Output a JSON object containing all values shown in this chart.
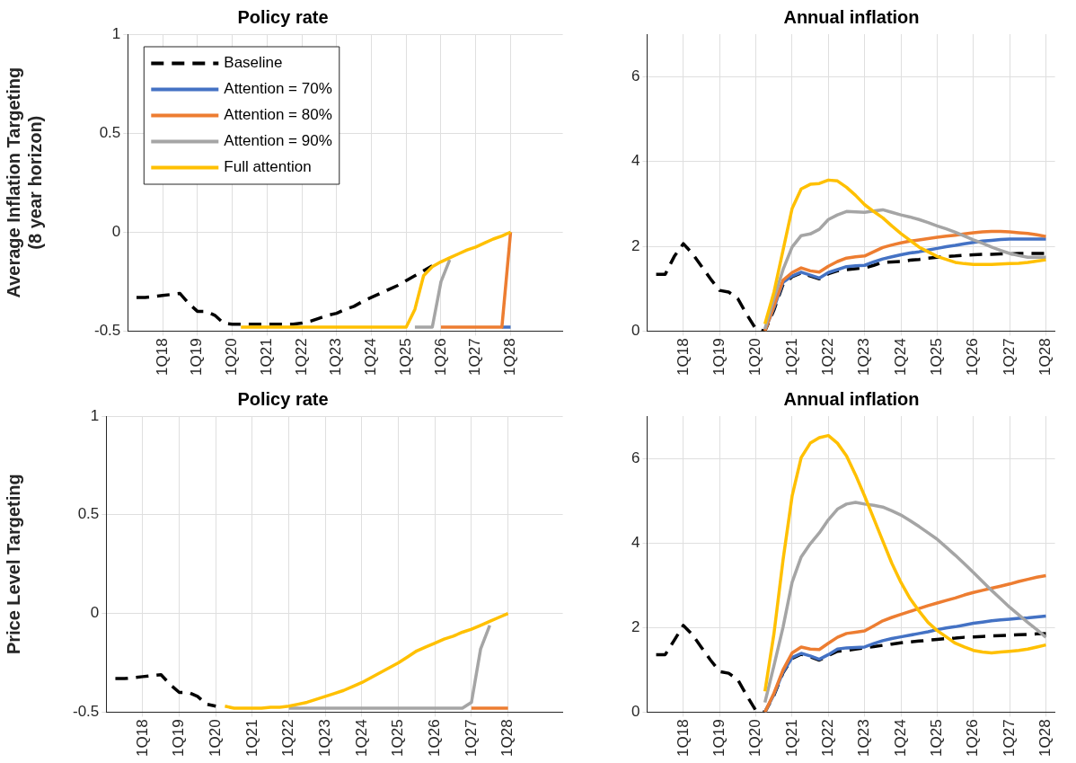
{
  "chart_data": [
    {
      "type": "line",
      "title": "Policy rate",
      "ylabel": "Average Inflation Targeting\n(8 year horizon)",
      "ylim": [
        -0.5,
        1
      ],
      "yticks": [
        -0.5,
        0,
        0.5,
        1
      ],
      "categories": [
        null,
        null,
        null,
        null,
        "1Q18",
        null,
        null,
        null,
        "1Q19",
        null,
        null,
        null,
        "1Q20",
        null,
        null,
        null,
        "1Q21",
        null,
        null,
        null,
        "1Q22",
        null,
        null,
        null,
        "1Q23",
        null,
        null,
        null,
        "1Q24",
        null,
        null,
        null,
        "1Q25",
        null,
        null,
        null,
        "1Q26",
        null,
        null,
        null,
        "1Q27",
        null,
        null,
        null,
        "1Q28",
        null,
        null,
        null,
        null,
        null,
        null
      ],
      "grid": true,
      "legend": "top left",
      "marker": "none",
      "series": [
        {
          "name": "Baseline",
          "color": "#000000",
          "line_style": "dashed",
          "values": [
            null,
            -0.33,
            -0.33,
            -0.325,
            -0.32,
            -0.315,
            -0.31,
            -0.36,
            -0.4,
            -0.4,
            -0.42,
            -0.46,
            -0.465,
            -0.465,
            -0.465,
            -0.465,
            -0.465,
            -0.465,
            -0.465,
            -0.465,
            -0.46,
            -0.45,
            -0.435,
            -0.42,
            -0.41,
            -0.39,
            -0.375,
            -0.35,
            -0.33,
            -0.31,
            -0.29,
            -0.27,
            -0.245,
            -0.22,
            -0.195,
            -0.17,
            null,
            null,
            null,
            null,
            null,
            null,
            null,
            null,
            null,
            null,
            null,
            null,
            null,
            null,
            null
          ]
        },
        {
          "name": "Attention = 70%",
          "color": "#4472c4",
          "line_style": "solid",
          "values": [
            null,
            null,
            null,
            null,
            null,
            null,
            null,
            null,
            null,
            null,
            null,
            null,
            null,
            null,
            null,
            null,
            null,
            null,
            null,
            null,
            null,
            null,
            null,
            null,
            null,
            null,
            null,
            null,
            null,
            null,
            null,
            null,
            null,
            null,
            null,
            null,
            null,
            null,
            null,
            null,
            null,
            null,
            null,
            -0.48,
            -0.48,
            null,
            null,
            null,
            null,
            null,
            null
          ]
        },
        {
          "name": "Attention = 80%",
          "color": "#ed7d31",
          "line_style": "solid",
          "values": [
            null,
            null,
            null,
            null,
            null,
            null,
            null,
            null,
            null,
            null,
            null,
            null,
            null,
            null,
            null,
            null,
            null,
            null,
            null,
            null,
            null,
            null,
            null,
            null,
            null,
            null,
            null,
            null,
            null,
            null,
            null,
            null,
            null,
            null,
            null,
            null,
            -0.48,
            -0.48,
            -0.48,
            -0.48,
            -0.48,
            -0.48,
            -0.48,
            -0.48,
            0,
            null,
            null,
            null,
            null,
            null,
            null
          ]
        },
        {
          "name": "Attention = 90%",
          "color": "#a5a5a5",
          "line_style": "solid",
          "values": [
            null,
            null,
            null,
            null,
            null,
            null,
            null,
            null,
            null,
            null,
            null,
            null,
            null,
            null,
            null,
            null,
            null,
            null,
            null,
            null,
            null,
            null,
            null,
            null,
            null,
            null,
            null,
            null,
            null,
            null,
            null,
            null,
            null,
            -0.48,
            -0.48,
            -0.48,
            -0.25,
            -0.14,
            null,
            null,
            null,
            null,
            null,
            null,
            null,
            null,
            null,
            null,
            null,
            null,
            null
          ]
        },
        {
          "name": "Full attention",
          "color": "#ffc000",
          "line_style": "solid",
          "values": [
            null,
            null,
            null,
            null,
            null,
            null,
            null,
            null,
            null,
            null,
            null,
            null,
            null,
            -0.48,
            -0.48,
            -0.48,
            -0.48,
            -0.48,
            -0.48,
            -0.48,
            -0.48,
            -0.48,
            -0.48,
            -0.48,
            -0.48,
            -0.48,
            -0.48,
            -0.48,
            -0.48,
            -0.48,
            -0.48,
            -0.48,
            -0.48,
            -0.39,
            -0.22,
            -0.175,
            -0.15,
            -0.13,
            -0.11,
            -0.09,
            -0.075,
            -0.055,
            -0.035,
            -0.02,
            0,
            null,
            null,
            null,
            null,
            null,
            null
          ]
        }
      ]
    },
    {
      "type": "line",
      "title": "Annual inflation",
      "ylim": [
        0,
        7
      ],
      "yticks": [
        0,
        2,
        4,
        6
      ],
      "categories": [
        null,
        null,
        null,
        null,
        "1Q18",
        null,
        null,
        null,
        "1Q19",
        null,
        null,
        null,
        "1Q20",
        null,
        null,
        null,
        "1Q21",
        null,
        null,
        null,
        "1Q22",
        null,
        null,
        null,
        "1Q23",
        null,
        null,
        null,
        "1Q24",
        null,
        null,
        null,
        "1Q25",
        null,
        null,
        null,
        "1Q26",
        null,
        null,
        null,
        "1Q27",
        null,
        null,
        null,
        "1Q28",
        null
      ],
      "grid": true,
      "marker": "none",
      "series": [
        {
          "color": "#000000",
          "line_style": "dashed",
          "values": [
            null,
            1.34,
            1.34,
            1.76,
            2.06,
            1.83,
            1.53,
            1.23,
            0.96,
            0.92,
            0.77,
            0.39,
            0.05,
            0,
            0.5,
            1.1,
            1.28,
            1.37,
            1.3,
            1.23,
            1.35,
            1.42,
            1.45,
            1.47,
            1.49,
            1.55,
            1.62,
            1.63,
            1.64,
            1.67,
            1.69,
            1.72,
            1.74,
            1.76,
            1.77,
            1.79,
            1.8,
            1.81,
            1.81,
            1.82,
            1.82,
            1.83,
            1.83,
            1.83,
            1.83,
            null
          ]
        },
        {
          "color": "#4472c4",
          "line_style": "solid",
          "values": [
            null,
            null,
            null,
            null,
            null,
            null,
            null,
            null,
            null,
            null,
            null,
            null,
            null,
            0.02,
            0.55,
            1.15,
            1.3,
            1.39,
            1.32,
            1.25,
            1.38,
            1.45,
            1.52,
            1.54,
            1.55,
            1.63,
            1.7,
            1.75,
            1.8,
            1.84,
            1.87,
            1.91,
            1.95,
            1.99,
            2.02,
            2.06,
            2.09,
            2.12,
            2.14,
            2.16,
            2.17,
            2.17,
            2.17,
            2.17,
            2.17,
            null
          ]
        },
        {
          "color": "#ed7d31",
          "line_style": "solid",
          "values": [
            null,
            null,
            null,
            null,
            null,
            null,
            null,
            null,
            null,
            null,
            null,
            null,
            null,
            0,
            0.6,
            1.2,
            1.38,
            1.49,
            1.42,
            1.39,
            1.53,
            1.64,
            1.72,
            1.75,
            1.77,
            1.87,
            1.97,
            2.03,
            2.08,
            2.12,
            2.15,
            2.18,
            2.21,
            2.24,
            2.26,
            2.29,
            2.32,
            2.34,
            2.35,
            2.35,
            2.34,
            2.32,
            2.3,
            2.27,
            2.23,
            null
          ]
        },
        {
          "color": "#a5a5a5",
          "line_style": "solid",
          "values": [
            null,
            null,
            null,
            null,
            null,
            null,
            null,
            null,
            null,
            null,
            null,
            null,
            null,
            0.05,
            0.77,
            1.45,
            1.98,
            2.25,
            2.29,
            2.4,
            2.63,
            2.74,
            2.82,
            2.81,
            2.8,
            2.83,
            2.86,
            2.8,
            2.74,
            2.69,
            2.63,
            2.56,
            2.48,
            2.41,
            2.33,
            2.24,
            2.15,
            2.07,
            1.98,
            1.9,
            1.83,
            1.78,
            1.74,
            1.74,
            1.74,
            null
          ]
        },
        {
          "color": "#ffc000",
          "line_style": "solid",
          "values": [
            null,
            null,
            null,
            null,
            null,
            null,
            null,
            null,
            null,
            null,
            null,
            null,
            null,
            0.17,
            0.92,
            1.91,
            2.89,
            3.35,
            3.46,
            3.48,
            3.56,
            3.54,
            3.39,
            3.2,
            2.98,
            2.82,
            2.67,
            2.48,
            2.3,
            2.14,
            1.98,
            1.87,
            1.76,
            1.69,
            1.62,
            1.59,
            1.57,
            1.57,
            1.57,
            1.58,
            1.59,
            1.6,
            1.62,
            1.65,
            1.68,
            null
          ]
        }
      ]
    },
    {
      "type": "line",
      "title": "Policy rate",
      "ylabel": "Price Level Targeting",
      "ylim": [
        -0.5,
        1
      ],
      "yticks": [
        -0.5,
        0,
        0.5,
        1
      ],
      "categories": [
        null,
        null,
        null,
        null,
        "1Q18",
        null,
        null,
        null,
        "1Q19",
        null,
        null,
        null,
        "1Q20",
        null,
        null,
        null,
        "1Q21",
        null,
        null,
        null,
        "1Q22",
        null,
        null,
        null,
        "1Q23",
        null,
        null,
        null,
        "1Q24",
        null,
        null,
        null,
        "1Q25",
        null,
        null,
        null,
        "1Q26",
        null,
        null,
        null,
        "1Q27",
        null,
        null,
        null,
        "1Q28",
        null,
        null,
        null,
        null,
        null,
        null
      ],
      "grid": true,
      "marker": "none",
      "series": [
        {
          "color": "#000000",
          "line_style": "dashed",
          "values": [
            null,
            -0.33,
            -0.33,
            -0.325,
            -0.32,
            -0.315,
            -0.31,
            -0.36,
            -0.4,
            -0.4,
            -0.42,
            -0.46,
            -0.47,
            null,
            null,
            null,
            null,
            null,
            null,
            null,
            null,
            null,
            null,
            null,
            null,
            null,
            null,
            null,
            null,
            null,
            null,
            null,
            null,
            null,
            null,
            null,
            null,
            null,
            null,
            null,
            null,
            null,
            null,
            null,
            null,
            null,
            null,
            null,
            null,
            null,
            null
          ]
        },
        {
          "color": "#ed7d31",
          "line_style": "solid",
          "values": [
            null,
            null,
            null,
            null,
            null,
            null,
            null,
            null,
            null,
            null,
            null,
            null,
            null,
            null,
            null,
            null,
            null,
            null,
            null,
            null,
            null,
            null,
            null,
            null,
            null,
            null,
            null,
            null,
            null,
            null,
            null,
            null,
            null,
            null,
            null,
            null,
            null,
            null,
            null,
            null,
            -0.48,
            -0.48,
            -0.48,
            -0.48,
            -0.48,
            null,
            null,
            null,
            null,
            null,
            null
          ]
        },
        {
          "color": "#a5a5a5",
          "line_style": "solid",
          "values": [
            null,
            null,
            null,
            null,
            null,
            null,
            null,
            null,
            null,
            null,
            null,
            null,
            null,
            null,
            null,
            null,
            null,
            null,
            null,
            null,
            -0.48,
            -0.48,
            -0.48,
            -0.48,
            -0.48,
            -0.48,
            -0.48,
            -0.48,
            -0.48,
            -0.48,
            -0.48,
            -0.48,
            -0.48,
            -0.48,
            -0.48,
            -0.48,
            -0.48,
            -0.48,
            -0.48,
            -0.48,
            -0.45,
            -0.18,
            -0.06,
            null,
            null,
            null,
            null,
            null,
            null,
            null,
            null
          ]
        },
        {
          "color": "#ffc000",
          "line_style": "solid",
          "values": [
            null,
            null,
            null,
            null,
            null,
            null,
            null,
            null,
            null,
            null,
            null,
            null,
            null,
            -0.47,
            -0.48,
            -0.48,
            -0.48,
            -0.48,
            -0.475,
            -0.475,
            -0.47,
            -0.46,
            -0.45,
            -0.435,
            -0.42,
            -0.405,
            -0.39,
            -0.37,
            -0.35,
            -0.325,
            -0.3,
            -0.275,
            -0.25,
            -0.22,
            -0.19,
            -0.17,
            -0.15,
            -0.13,
            -0.115,
            -0.095,
            -0.08,
            -0.06,
            -0.04,
            -0.02,
            0,
            null,
            null,
            null,
            null,
            null,
            null
          ]
        }
      ]
    },
    {
      "type": "line",
      "title": "Annual inflation",
      "ylim": [
        0,
        7
      ],
      "yticks": [
        0,
        2,
        4,
        6
      ],
      "categories": [
        null,
        null,
        null,
        null,
        "1Q18",
        null,
        null,
        null,
        "1Q19",
        null,
        null,
        null,
        "1Q20",
        null,
        null,
        null,
        "1Q21",
        null,
        null,
        null,
        "1Q22",
        null,
        null,
        null,
        "1Q23",
        null,
        null,
        null,
        "1Q24",
        null,
        null,
        null,
        "1Q25",
        null,
        null,
        null,
        "1Q26",
        null,
        null,
        null,
        "1Q27",
        null,
        null,
        null,
        "1Q28",
        null
      ],
      "grid": true,
      "marker": "none",
      "series": [
        {
          "color": "#000000",
          "line_style": "dashed",
          "values": [
            null,
            1.36,
            1.36,
            1.7,
            2.05,
            1.83,
            1.53,
            1.23,
            0.96,
            0.92,
            0.77,
            0.39,
            0.04,
            0,
            0.4,
            0.93,
            1.27,
            1.37,
            1.31,
            1.23,
            1.34,
            1.44,
            1.46,
            1.49,
            1.52,
            1.55,
            1.58,
            1.61,
            1.64,
            1.66,
            1.68,
            1.7,
            1.72,
            1.74,
            1.75,
            1.77,
            1.78,
            1.79,
            1.8,
            1.81,
            1.82,
            1.83,
            1.84,
            1.85,
            1.86,
            null
          ]
        },
        {
          "color": "#4472c4",
          "line_style": "solid",
          "values": [
            null,
            null,
            null,
            null,
            null,
            null,
            null,
            null,
            null,
            null,
            null,
            null,
            null,
            0,
            0.42,
            0.95,
            1.29,
            1.39,
            1.33,
            1.25,
            1.36,
            1.49,
            1.52,
            1.53,
            1.54,
            1.62,
            1.69,
            1.74,
            1.78,
            1.82,
            1.86,
            1.9,
            1.95,
            1.99,
            2.02,
            2.06,
            2.1,
            2.13,
            2.16,
            2.18,
            2.2,
            2.22,
            2.23,
            2.25,
            2.27,
            null
          ]
        },
        {
          "color": "#ed7d31",
          "line_style": "solid",
          "values": [
            null,
            null,
            null,
            null,
            null,
            null,
            null,
            null,
            null,
            null,
            null,
            null,
            null,
            0,
            0.45,
            1,
            1.4,
            1.54,
            1.49,
            1.48,
            1.63,
            1.77,
            1.86,
            1.89,
            1.92,
            2.04,
            2.16,
            2.24,
            2.31,
            2.38,
            2.45,
            2.52,
            2.58,
            2.64,
            2.7,
            2.77,
            2.83,
            2.88,
            2.93,
            2.98,
            3.03,
            3.09,
            3.14,
            3.19,
            3.23,
            null
          ]
        },
        {
          "color": "#a5a5a5",
          "line_style": "solid",
          "values": [
            null,
            null,
            null,
            null,
            null,
            null,
            null,
            null,
            null,
            null,
            null,
            null,
            null,
            0.23,
            1.1,
            2.01,
            3.07,
            3.67,
            3.98,
            4.24,
            4.55,
            4.8,
            4.92,
            4.96,
            4.92,
            4.89,
            4.85,
            4.76,
            4.66,
            4.53,
            4.39,
            4.24,
            4.09,
            3.9,
            3.71,
            3.51,
            3.3,
            3.09,
            2.88,
            2.68,
            2.48,
            2.3,
            2.12,
            1.95,
            1.77,
            null
          ]
        },
        {
          "color": "#ffc000",
          "line_style": "solid",
          "values": [
            null,
            null,
            null,
            null,
            null,
            null,
            null,
            null,
            null,
            null,
            null,
            null,
            null,
            0.49,
            1.86,
            3.6,
            5.11,
            6.02,
            6.36,
            6.49,
            6.54,
            6.36,
            6.06,
            5.61,
            5.11,
            4.58,
            4.05,
            3.52,
            3.07,
            2.69,
            2.39,
            2.12,
            1.93,
            1.78,
            1.63,
            1.54,
            1.46,
            1.42,
            1.4,
            1.42,
            1.44,
            1.46,
            1.49,
            1.54,
            1.59,
            null
          ]
        }
      ]
    }
  ]
}
